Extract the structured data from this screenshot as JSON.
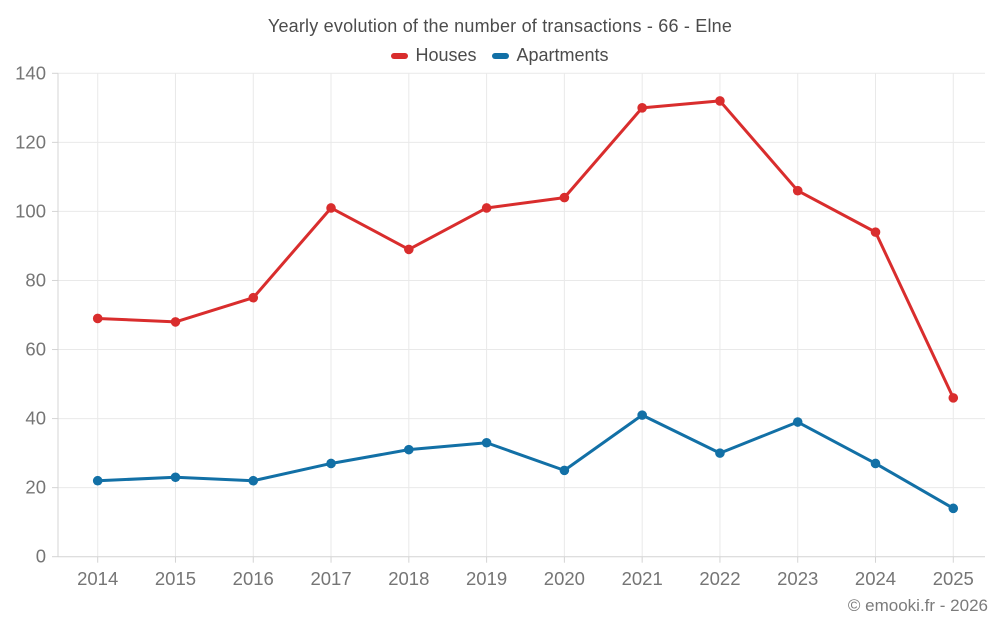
{
  "title": "Yearly evolution of the number of transactions - 66 - Elne",
  "footer": "© emooki.fr - 2026",
  "colors": {
    "houses": "#d92d2d",
    "apartments": "#1270a6",
    "grid": "#e9e9e9",
    "axis": "#d4d4d4",
    "title_text": "#4c4c4c",
    "tick_text": "#757575",
    "footer_text": "#7b7b7b",
    "background": "#ffffff"
  },
  "chart_data": {
    "type": "line",
    "title": "Yearly evolution of the number of transactions - 66 - Elne",
    "categories": [
      "2014",
      "2015",
      "2016",
      "2017",
      "2018",
      "2019",
      "2020",
      "2021",
      "2022",
      "2023",
      "2024",
      "2025"
    ],
    "series": [
      {
        "name": "Houses",
        "color": "#d92d2d",
        "values": [
          69,
          68,
          75,
          101,
          89,
          101,
          104,
          130,
          132,
          106,
          94,
          46
        ]
      },
      {
        "name": "Apartments",
        "color": "#1270a6",
        "values": [
          22,
          23,
          22,
          27,
          31,
          33,
          25,
          41,
          30,
          39,
          27,
          14
        ]
      }
    ],
    "xlabel": "",
    "ylabel": "",
    "ylim": [
      0,
      140
    ],
    "ytick_step": 20,
    "grid": true,
    "legend_position": "top",
    "marker": "circle"
  }
}
